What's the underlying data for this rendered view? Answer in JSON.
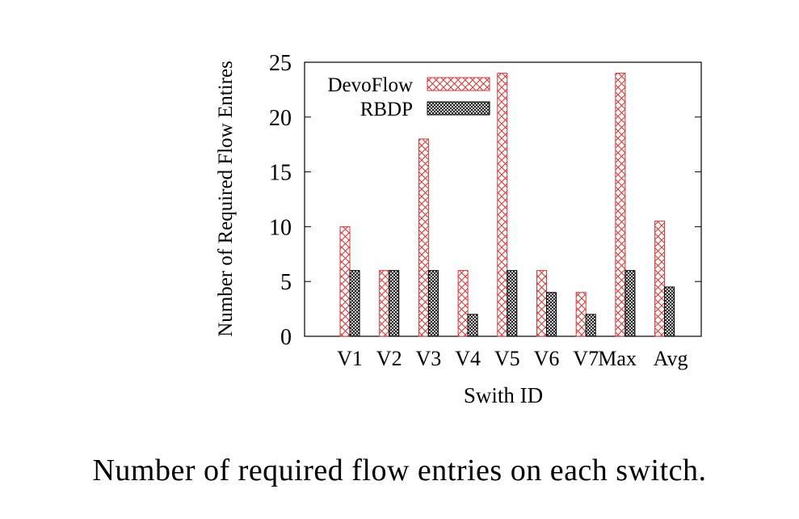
{
  "chart_data": {
    "type": "bar",
    "title": "",
    "xlabel": "Swith ID",
    "ylabel": "Number of Required Flow Entires",
    "ylim": [
      0,
      25
    ],
    "yticks": [
      0,
      5,
      10,
      15,
      20,
      25
    ],
    "categories": [
      "V1",
      "V2",
      "V3",
      "V4",
      "V5",
      "V6",
      "V7",
      "Max",
      "Avg"
    ],
    "series": [
      {
        "name": "DevoFlow",
        "values": [
          10,
          6,
          18,
          6,
          24,
          6,
          4,
          24,
          10.5
        ],
        "color": "#e03030",
        "pattern": "crosshatch-sparse"
      },
      {
        "name": "RBDP",
        "values": [
          6,
          6,
          6,
          2,
          6,
          4,
          2,
          6,
          4.5
        ],
        "color": "#000000",
        "pattern": "crosshatch-dense"
      }
    ],
    "legend": "top-left",
    "grid": false
  },
  "caption": "Number of required flow entries on each switch."
}
